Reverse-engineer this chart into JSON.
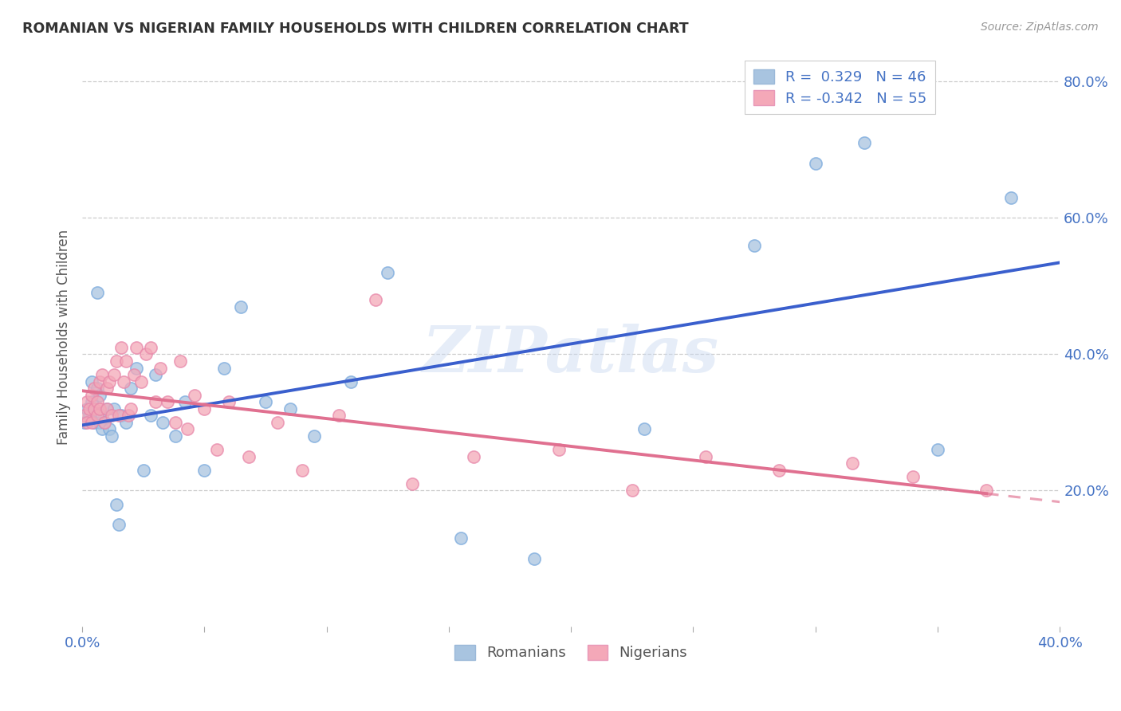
{
  "title": "ROMANIAN VS NIGERIAN FAMILY HOUSEHOLDS WITH CHILDREN CORRELATION CHART",
  "source": "Source: ZipAtlas.com",
  "ylabel": "Family Households with Children",
  "watermark": "ZIPatlas",
  "romanian_R": 0.329,
  "romanian_N": 46,
  "nigerian_R": -0.342,
  "nigerian_N": 55,
  "romanian_color": "#a8c4e0",
  "nigerian_color": "#f4a8b8",
  "romanian_line_color": "#3a5fcd",
  "nigerian_line_color": "#e07090",
  "bg_color": "#ffffff",
  "grid_color": "#cccccc",
  "xlim": [
    0.0,
    0.4
  ],
  "ylim": [
    0.0,
    0.85
  ],
  "yticks": [
    0.2,
    0.4,
    0.6,
    0.8
  ],
  "ytick_labels": [
    "20.0%",
    "40.0%",
    "60.0%",
    "80.0%"
  ],
  "romanian_x": [
    0.001,
    0.002,
    0.003,
    0.004,
    0.004,
    0.005,
    0.005,
    0.006,
    0.006,
    0.007,
    0.007,
    0.008,
    0.008,
    0.009,
    0.01,
    0.011,
    0.012,
    0.013,
    0.014,
    0.015,
    0.016,
    0.018,
    0.02,
    0.022,
    0.025,
    0.028,
    0.03,
    0.033,
    0.038,
    0.042,
    0.05,
    0.058,
    0.065,
    0.075,
    0.085,
    0.095,
    0.11,
    0.125,
    0.155,
    0.185,
    0.23,
    0.275,
    0.3,
    0.32,
    0.35,
    0.38
  ],
  "romanian_y": [
    0.3,
    0.32,
    0.31,
    0.33,
    0.36,
    0.32,
    0.3,
    0.35,
    0.49,
    0.3,
    0.34,
    0.31,
    0.29,
    0.3,
    0.32,
    0.29,
    0.28,
    0.32,
    0.18,
    0.15,
    0.31,
    0.3,
    0.35,
    0.38,
    0.23,
    0.31,
    0.37,
    0.3,
    0.28,
    0.33,
    0.23,
    0.38,
    0.47,
    0.33,
    0.32,
    0.28,
    0.36,
    0.52,
    0.13,
    0.1,
    0.29,
    0.56,
    0.68,
    0.71,
    0.26,
    0.63
  ],
  "nigerian_x": [
    0.001,
    0.002,
    0.002,
    0.003,
    0.004,
    0.004,
    0.005,
    0.005,
    0.006,
    0.006,
    0.007,
    0.007,
    0.008,
    0.009,
    0.01,
    0.01,
    0.011,
    0.012,
    0.013,
    0.014,
    0.015,
    0.016,
    0.017,
    0.018,
    0.019,
    0.02,
    0.021,
    0.022,
    0.024,
    0.026,
    0.028,
    0.03,
    0.032,
    0.035,
    0.038,
    0.04,
    0.043,
    0.046,
    0.05,
    0.055,
    0.06,
    0.068,
    0.08,
    0.09,
    0.105,
    0.12,
    0.135,
    0.16,
    0.195,
    0.225,
    0.255,
    0.285,
    0.315,
    0.34,
    0.37
  ],
  "nigerian_y": [
    0.31,
    0.3,
    0.33,
    0.32,
    0.3,
    0.34,
    0.32,
    0.35,
    0.31,
    0.33,
    0.36,
    0.32,
    0.37,
    0.3,
    0.32,
    0.35,
    0.36,
    0.31,
    0.37,
    0.39,
    0.31,
    0.41,
    0.36,
    0.39,
    0.31,
    0.32,
    0.37,
    0.41,
    0.36,
    0.4,
    0.41,
    0.33,
    0.38,
    0.33,
    0.3,
    0.39,
    0.29,
    0.34,
    0.32,
    0.26,
    0.33,
    0.25,
    0.3,
    0.23,
    0.31,
    0.48,
    0.21,
    0.25,
    0.26,
    0.2,
    0.25,
    0.23,
    0.24,
    0.22,
    0.2
  ]
}
